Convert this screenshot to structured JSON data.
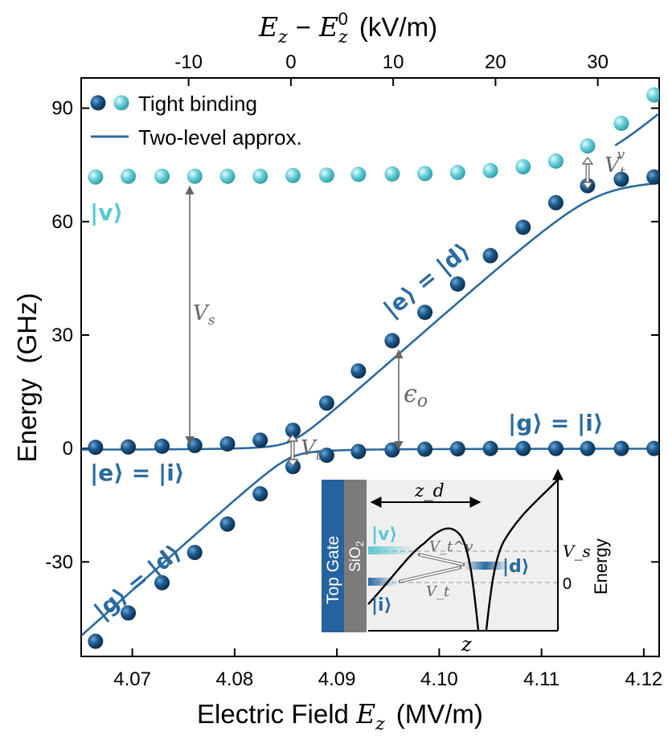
{
  "chart_data": {
    "type": "scatter",
    "title": "",
    "xlabel": "Electric Field E_z (MV/m)",
    "xlabel_parts": {
      "main": "Electric Field ",
      "sym": "E",
      "sub": "z",
      "unit": "(MV/m)"
    },
    "x2label": "E_z − E_z^0 (kV/m)",
    "x2label_parts": {
      "e1": "E",
      "s1": "z",
      "minus": "−",
      "e2": "E",
      "s2": "z",
      "sup2": "0",
      "unit": "(kV/m)"
    },
    "ylabel": "Energy  (GHz)",
    "xlim": [
      4.065,
      4.1215
    ],
    "ylim": [
      -55,
      98
    ],
    "x_ticks": [
      4.07,
      4.08,
      4.09,
      4.1,
      4.11,
      4.12
    ],
    "x_tick_labels": [
      "4.07",
      "4.08",
      "4.09",
      "4.10",
      "4.11",
      "4.12"
    ],
    "x2_ticks": [
      -10,
      0,
      10,
      20,
      30
    ],
    "x2_tick_labels": [
      "-10",
      "0",
      "10",
      "20",
      "30"
    ],
    "x2_zero_at": 4.0855,
    "y_ticks": [
      -30,
      0,
      30,
      60,
      90
    ],
    "y_tick_labels": [
      "-30",
      "0",
      "30",
      "60",
      "90"
    ],
    "legend": {
      "position": "top-left",
      "entries": [
        {
          "label": "Tight binding",
          "kind": "markers"
        },
        {
          "label": "Two-level approx.",
          "kind": "line"
        }
      ]
    },
    "series": [
      {
        "name": "Tight binding (valley state |v⟩)",
        "color": "#5ac8d2",
        "x": [
          4.0664,
          4.0696,
          4.0729,
          4.0761,
          4.0793,
          4.0825,
          4.0857,
          4.089,
          4.0921,
          4.0954,
          4.0986,
          4.1018,
          4.105,
          4.1082,
          4.1114,
          4.1145,
          4.1178,
          4.121
        ],
        "y": [
          71.8,
          72.0,
          72.0,
          72.0,
          72.0,
          72.0,
          72.2,
          72.3,
          72.5,
          72.6,
          72.7,
          73.0,
          73.5,
          74.5,
          76.0,
          80.0,
          86.0,
          93.5
        ]
      },
      {
        "name": "Tight binding (lower state)",
        "color": "#1a5a8c",
        "x": [
          4.0664,
          4.0696,
          4.0729,
          4.0761,
          4.0793,
          4.0825,
          4.0857,
          4.089,
          4.0921,
          4.0954,
          4.0986,
          4.1018,
          4.105,
          4.1082,
          4.1114,
          4.1145,
          4.1178,
          4.121
        ],
        "y": [
          -51.0,
          -43.5,
          -35.5,
          -27.5,
          -20.0,
          -12.0,
          -4.8,
          -1.8,
          -0.8,
          -0.4,
          -0.2,
          -0.1,
          0.0,
          0.0,
          0.0,
          0.0,
          0.0,
          0.0
        ]
      },
      {
        "name": "Tight binding (upper state)",
        "color": "#1a5a8c",
        "x": [
          4.0664,
          4.0696,
          4.0729,
          4.0761,
          4.0793,
          4.0825,
          4.0857,
          4.089,
          4.0921,
          4.0954,
          4.0986,
          4.1018,
          4.105,
          4.1082,
          4.1114,
          4.1145,
          4.1178,
          4.121
        ],
        "y": [
          0.3,
          0.4,
          0.6,
          0.8,
          1.2,
          2.2,
          4.8,
          12.0,
          20.5,
          28.5,
          36.0,
          43.5,
          51.0,
          58.5,
          65.0,
          69.5,
          71.2,
          71.8
        ]
      },
      {
        "name": "Two-level approx.",
        "color": "#2a6aa0",
        "kind": "line"
      }
    ],
    "line_model": {
      "x0": 4.0855,
      "slope_GHz_per_MVm": 2410,
      "Vt_GHz": 4.8,
      "Vs_GHz": 72,
      "Vtv_GHz": 5.5
    },
    "annotations": [
      {
        "text": "|v⟩",
        "color": "#5ac8d2"
      },
      {
        "text": "V_s",
        "color": "#666666"
      },
      {
        "text": "V_t",
        "color": "#666666"
      },
      {
        "text": "V_t^v",
        "color": "#666666"
      },
      {
        "text": "ε_o",
        "color": "#666666"
      },
      {
        "text": "|e⟩ = |d⟩",
        "color": "#2a6aa0"
      },
      {
        "text": "|g⟩ = |i⟩",
        "color": "#2a6aa0"
      },
      {
        "text": "|e⟩ = |i⟩",
        "color": "#2a6aa0"
      },
      {
        "text": "|g⟩ = |d⟩",
        "color": "#2a6aa0"
      }
    ],
    "inset": {
      "gate_label": "Top Gate",
      "oxide_label": "SiO",
      "oxide_sub": "2",
      "zd_label": "z_d",
      "z_label": "z",
      "energy_label": "Energy",
      "Vs_label": "V_s",
      "zero_label": "0",
      "state_v": "|v⟩",
      "state_i": "|i⟩",
      "state_d": "|d⟩",
      "Vt_label": "V_t",
      "Vtv_label": "V_t^v"
    }
  },
  "labels": {
    "legend_markers": "Tight binding",
    "legend_line": "Two-level approx.",
    "ann_v": "|v⟩",
    "ann_Vs_main": "V",
    "ann_Vs_sub": "s",
    "ann_Vt_main": "V",
    "ann_Vt_sub": "t",
    "ann_Vtv_main": "V",
    "ann_Vtv_sub": "t",
    "ann_Vtv_sup": "v",
    "ann_eps_main": "ϵ",
    "ann_eps_sub": "o",
    "ann_ed": "|e⟩ = |d⟩",
    "ann_gi": "|g⟩ = |i⟩",
    "ann_ei": "|e⟩ = |i⟩",
    "ann_gd": "|g⟩ = |d⟩"
  },
  "colors": {
    "dark": "#1a5a8c",
    "light": "#5ac8d2",
    "line": "#2a6aa0",
    "annotation": "#666666"
  }
}
